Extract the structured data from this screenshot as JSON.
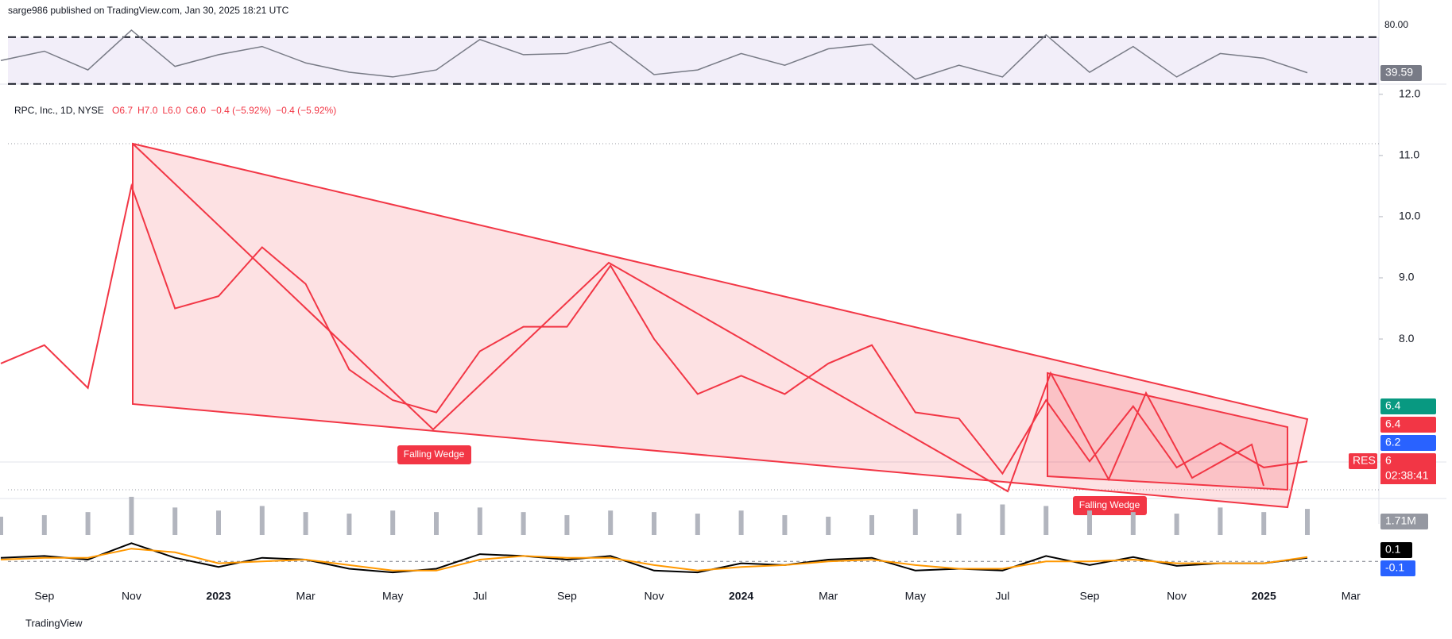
{
  "chart_data": {
    "type": "line",
    "header": "sarge986 published on TradingView.com, Jan 30, 2025 18:21 UTC",
    "legend_text": "RPC, Inc., 1D, NYSE",
    "ohlc": [
      "O6.7",
      "H7.0",
      "L6.0",
      "C6.0",
      "−0.4 (−5.92%)",
      "−0.4 (−5.92%)"
    ],
    "footer": "TradingView",
    "categories": [
      null,
      "Sep",
      null,
      "Nov",
      null,
      "2023",
      null,
      "Mar",
      null,
      "May",
      null,
      "Jul",
      null,
      "Sep",
      null,
      "Nov",
      null,
      "2024",
      null,
      "Mar",
      null,
      "May",
      null,
      "Jul",
      null,
      "Sep",
      null,
      "Nov",
      null,
      "2025",
      null,
      "Mar"
    ],
    "series": [
      {
        "name": "RPC, Inc.",
        "color": "#f23645",
        "values": [
          7.6,
          7.9,
          7.2,
          10.5,
          8.5,
          8.7,
          9.5,
          8.9,
          7.5,
          7.0,
          6.8,
          7.8,
          8.2,
          8.2,
          9.2,
          8.0,
          7.1,
          7.4,
          7.1,
          7.6,
          7.9,
          6.8,
          6.7,
          5.8,
          7.0,
          6.0,
          6.9,
          5.9,
          6.3,
          5.9,
          6.0,
          null
        ]
      }
    ],
    "ylim": [
      4.77,
      12.14
    ],
    "yticks": [
      {
        "value": 12,
        "label": "12.0"
      },
      {
        "value": 11,
        "label": "11.0"
      },
      {
        "value": 10,
        "label": "10.0"
      },
      {
        "value": 9,
        "label": "9.0"
      },
      {
        "value": 8,
        "label": "8.0"
      }
    ],
    "annotations": [
      "Falling Wedge",
      "Falling Wedge"
    ],
    "price_badges": [
      {
        "value": 6.4,
        "color": "#089981"
      },
      {
        "value": 6.4,
        "color": "#f23645"
      },
      {
        "value": 6.2,
        "color": "#2962ff"
      },
      {
        "value": 6.0,
        "color": "#f23645"
      }
    ],
    "symbol_tag": "RES",
    "countdown": "02:38:41",
    "rsi": {
      "color": "#787b86",
      "values": [
        50,
        58,
        42,
        76,
        45,
        55,
        62,
        48,
        40,
        36,
        42,
        68,
        55,
        56,
        66,
        38,
        42,
        56,
        46,
        60,
        64,
        34,
        46,
        36,
        72,
        40,
        62,
        36,
        56,
        52,
        39.59,
        null
      ],
      "ylim": [
        19,
        84.1
      ],
      "yticks": [
        {
          "value": 80,
          "label": "80.00"
        }
      ],
      "bands": [
        30,
        70
      ]
    },
    "volume": {
      "color": "#b2b5be",
      "values": [
        1.2,
        1.3,
        1.5,
        2.5,
        1.8,
        1.6,
        1.9,
        1.5,
        1.4,
        1.6,
        1.5,
        1.8,
        1.5,
        1.3,
        1.6,
        1.5,
        1.4,
        1.6,
        1.3,
        1.2,
        1.3,
        1.7,
        1.4,
        2.0,
        1.9,
        1.6,
        1.5,
        1.4,
        1.8,
        1.5,
        1.71,
        null
      ],
      "ylim": [
        0,
        8
      ],
      "last": {
        "value": 1.71,
        "label": "1.71M"
      }
    },
    "macd": {
      "ylim": [
        -0.45,
        0.55
      ],
      "histogram_last": -0.1,
      "series": [
        {
          "name": "MACD",
          "color": "#000000",
          "values": [
            0.1,
            0.15,
            0.05,
            0.5,
            0.1,
            -0.15,
            0.1,
            0.05,
            -0.2,
            -0.3,
            -0.2,
            0.2,
            0.15,
            0.05,
            0.15,
            -0.25,
            -0.3,
            -0.05,
            -0.1,
            0.05,
            0.1,
            -0.25,
            -0.2,
            -0.25,
            0.15,
            -0.1,
            0.12,
            -0.12,
            -0.05,
            -0.05,
            0.1,
            null
          ]
        },
        {
          "name": "Signal",
          "color": "#ff9800",
          "values": [
            0.05,
            0.1,
            0.1,
            0.35,
            0.25,
            -0.05,
            0.0,
            0.05,
            -0.1,
            -0.25,
            -0.25,
            0.05,
            0.15,
            0.1,
            0.1,
            -0.1,
            -0.25,
            -0.15,
            -0.1,
            0.0,
            0.05,
            -0.1,
            -0.2,
            -0.2,
            0.0,
            0.0,
            0.05,
            -0.05,
            -0.05,
            -0.05,
            0.12,
            null
          ]
        }
      ]
    }
  }
}
